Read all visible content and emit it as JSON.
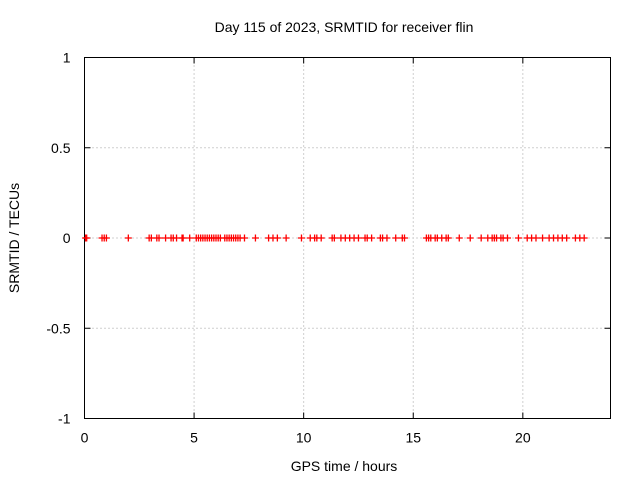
{
  "chart_data": {
    "type": "scatter",
    "title": "Day 115 of 2023, SRMTID for receiver flin",
    "xlabel": "GPS time / hours",
    "ylabel": "SRMTID / TECUs",
    "xlim": [
      0,
      24
    ],
    "ylim": [
      -1,
      1
    ],
    "xticks": [
      0,
      5,
      10,
      15,
      20
    ],
    "xtick_labels": [
      "0",
      "5",
      "10",
      "15",
      "20"
    ],
    "yticks": [
      -1,
      -0.5,
      0,
      0.5,
      1
    ],
    "ytick_labels": [
      "-1",
      "-0.5",
      "0",
      "0.5",
      "1"
    ],
    "grid": true,
    "marker": "+",
    "color": "#ff0000",
    "series": [
      {
        "name": "SRMTID",
        "x": [
          0.05,
          0.1,
          0.8,
          0.9,
          1.0,
          2.0,
          2.95,
          3.05,
          3.3,
          3.4,
          3.7,
          3.95,
          4.05,
          4.2,
          4.45,
          4.5,
          4.8,
          5.1,
          5.2,
          5.3,
          5.4,
          5.5,
          5.6,
          5.7,
          5.8,
          5.9,
          6.0,
          6.1,
          6.2,
          6.4,
          6.5,
          6.6,
          6.7,
          6.8,
          6.9,
          7.0,
          7.1,
          7.3,
          7.8,
          8.4,
          8.6,
          8.8,
          9.2,
          9.9,
          10.3,
          10.5,
          10.6,
          10.8,
          11.3,
          11.4,
          11.7,
          11.9,
          12.1,
          12.3,
          12.5,
          12.8,
          12.9,
          13.1,
          13.5,
          13.6,
          13.8,
          14.2,
          14.5,
          14.6,
          15.6,
          15.7,
          15.8,
          16.0,
          16.1,
          16.3,
          16.5,
          16.6,
          17.1,
          17.6,
          18.1,
          18.4,
          18.6,
          18.7,
          18.8,
          19.0,
          19.1,
          19.3,
          19.8,
          20.2,
          20.4,
          20.6,
          20.9,
          21.2,
          21.4,
          21.6,
          21.8,
          22.0,
          22.4,
          22.6,
          22.8
        ]
      }
    ]
  }
}
